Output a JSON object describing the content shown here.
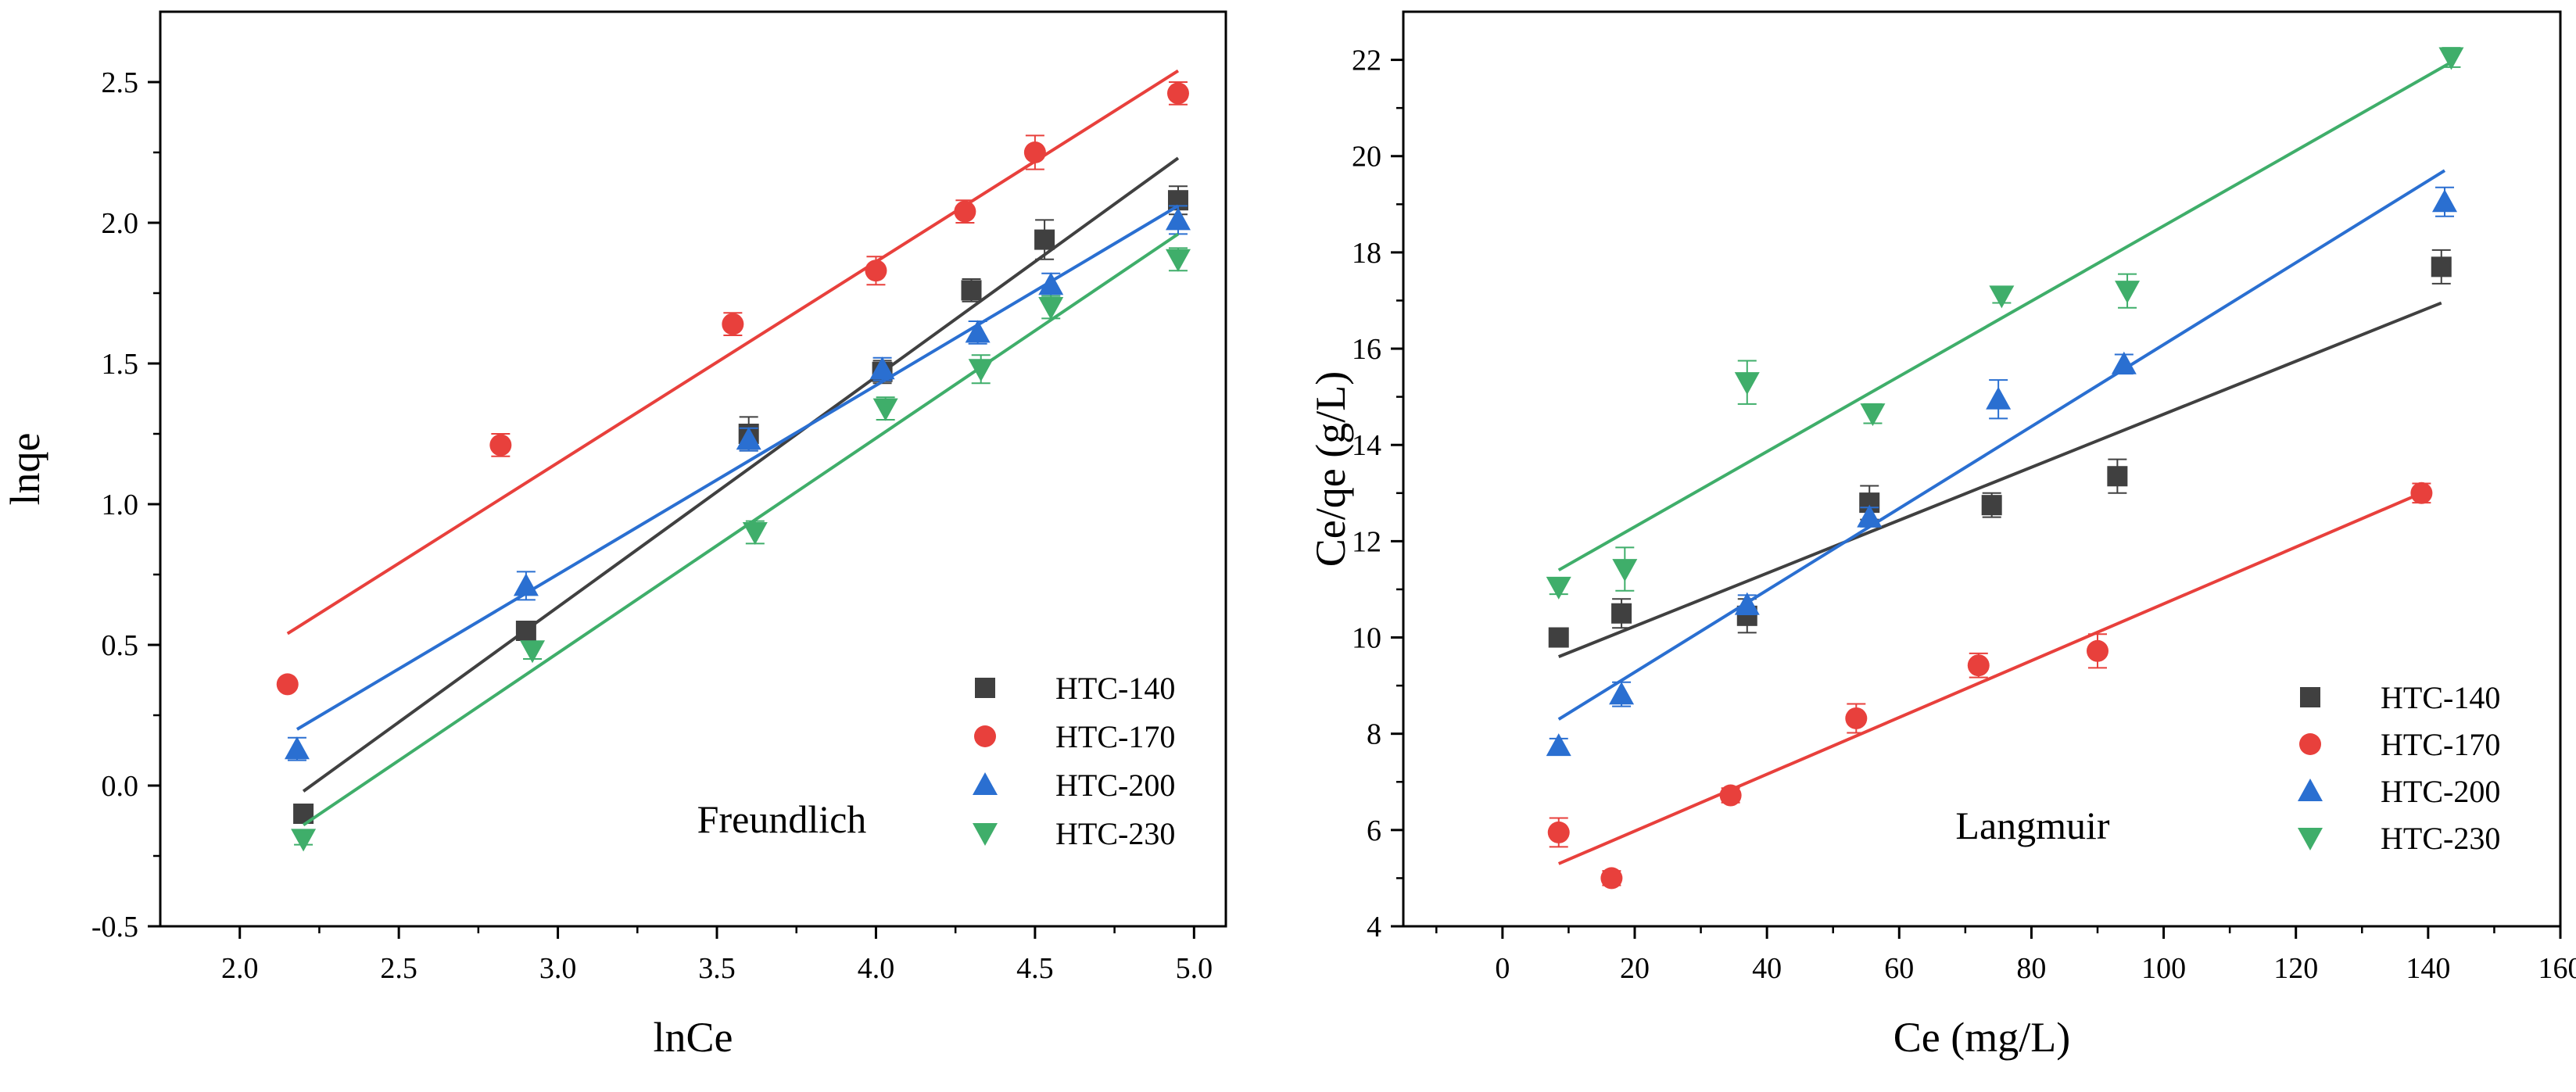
{
  "chart_data": [
    {
      "type": "scatter",
      "title": "Freundlich",
      "xlabel": "lnCe",
      "ylabel": "lnqe",
      "xlim": [
        1.75,
        5.1
      ],
      "ylim": [
        -0.5,
        2.75
      ],
      "xticks": [
        2.0,
        2.5,
        3.0,
        3.5,
        4.0,
        4.5,
        5.0
      ],
      "xtick_labels": [
        "2.0",
        "2.5",
        "3.0",
        "3.5",
        "4.0",
        "4.5",
        "5.0"
      ],
      "yticks": [
        -0.5,
        0.0,
        0.5,
        1.0,
        1.5,
        2.0,
        2.5
      ],
      "ytick_labels": [
        "-0.5",
        "0.0",
        "0.5",
        "1.0",
        "1.5",
        "2.0",
        "2.5"
      ],
      "legend_position": "bottom-right",
      "series": [
        {
          "name": "HTC-140",
          "color": "#404040",
          "marker": "square",
          "x": [
            2.2,
            2.9,
            3.6,
            4.02,
            4.3,
            4.53,
            4.95
          ],
          "y": [
            -0.1,
            0.55,
            1.25,
            1.47,
            1.76,
            1.94,
            2.08
          ],
          "err": [
            0.02,
            0.03,
            0.06,
            0.04,
            0.04,
            0.07,
            0.05
          ],
          "fit": {
            "x": [
              2.2,
              4.95
            ],
            "y": [
              -0.02,
              2.23
            ]
          }
        },
        {
          "name": "HTC-170",
          "color": "#e8403c",
          "marker": "circle",
          "x": [
            2.15,
            2.82,
            3.55,
            4.0,
            4.28,
            4.5,
            4.95
          ],
          "y": [
            0.36,
            1.21,
            1.64,
            1.83,
            2.04,
            2.25,
            2.46
          ],
          "err": [
            0.01,
            0.04,
            0.04,
            0.05,
            0.04,
            0.06,
            0.04
          ],
          "fit": {
            "x": [
              2.15,
              4.95
            ],
            "y": [
              0.54,
              2.54
            ]
          }
        },
        {
          "name": "HTC-200",
          "color": "#2a6fd1",
          "marker": "triangle-up",
          "x": [
            2.18,
            2.9,
            3.6,
            4.02,
            4.32,
            4.55,
            4.95
          ],
          "y": [
            0.13,
            0.71,
            1.23,
            1.48,
            1.61,
            1.78,
            2.01
          ],
          "err": [
            0.04,
            0.05,
            0.04,
            0.04,
            0.04,
            0.04,
            0.05
          ],
          "fit": {
            "x": [
              2.18,
              4.95
            ],
            "y": [
              0.2,
              2.06
            ]
          }
        },
        {
          "name": "HTC-230",
          "color": "#3fae6a",
          "marker": "triangle-down",
          "x": [
            2.2,
            2.92,
            3.62,
            4.03,
            4.33,
            4.55,
            4.95
          ],
          "y": [
            -0.19,
            0.48,
            0.9,
            1.34,
            1.48,
            1.7,
            1.87
          ],
          "err": [
            0.02,
            0.03,
            0.04,
            0.04,
            0.05,
            0.04,
            0.04
          ],
          "fit": {
            "x": [
              2.2,
              4.95
            ],
            "y": [
              -0.14,
              1.96
            ]
          }
        }
      ]
    },
    {
      "type": "scatter",
      "title": "Langmuir",
      "xlabel": "Ce (mg/L)",
      "ylabel": "Ce/qe (g/L)",
      "xlim": [
        -15,
        160
      ],
      "ylim": [
        4,
        23
      ],
      "xticks": [
        0,
        20,
        40,
        60,
        80,
        100,
        120,
        140,
        160
      ],
      "xtick_labels": [
        "0",
        "20",
        "40",
        "60",
        "80",
        "100",
        "120",
        "140",
        "160"
      ],
      "yticks": [
        4,
        6,
        8,
        10,
        12,
        14,
        16,
        18,
        20,
        22
      ],
      "ytick_labels": [
        "4",
        "6",
        "8",
        "10",
        "12",
        "14",
        "16",
        "18",
        "20",
        "22"
      ],
      "legend_position": "bottom-right",
      "series": [
        {
          "name": "HTC-140",
          "color": "#404040",
          "marker": "square",
          "x": [
            8.5,
            18,
            37,
            55.5,
            74,
            93,
            142
          ],
          "y": [
            10.0,
            10.5,
            10.45,
            12.8,
            12.75,
            13.35,
            17.7
          ],
          "err": [
            0.15,
            0.3,
            0.35,
            0.35,
            0.25,
            0.35,
            0.35
          ],
          "fit": {
            "x": [
              8.5,
              142
            ],
            "y": [
              9.6,
              16.95
            ]
          }
        },
        {
          "name": "HTC-170",
          "color": "#e8403c",
          "marker": "circle",
          "x": [
            8.5,
            16.5,
            34.5,
            53.5,
            72,
            90,
            139
          ],
          "y": [
            5.95,
            5.0,
            6.72,
            8.32,
            9.42,
            9.72,
            13.0
          ],
          "err": [
            0.3,
            0.15,
            0.15,
            0.3,
            0.25,
            0.35,
            0.2
          ],
          "fit": {
            "x": [
              8.5,
              139
            ],
            "y": [
              5.3,
              13.0
            ]
          }
        },
        {
          "name": "HTC-200",
          "color": "#2a6fd1",
          "marker": "triangle-up",
          "x": [
            8.5,
            18,
            37,
            55.5,
            75,
            94,
            142.5
          ],
          "y": [
            7.75,
            8.82,
            10.68,
            12.5,
            14.95,
            15.68,
            19.05
          ],
          "err": [
            0.15,
            0.25,
            0.2,
            0.2,
            0.4,
            0.2,
            0.3
          ],
          "fit": {
            "x": [
              8.5,
              142.5
            ],
            "y": [
              8.3,
              19.7
            ]
          }
        },
        {
          "name": "HTC-230",
          "color": "#3fae6a",
          "marker": "triangle-down",
          "x": [
            8.5,
            18.5,
            37,
            56,
            75.5,
            94.5,
            143.5
          ],
          "y": [
            11.05,
            11.42,
            15.3,
            14.65,
            17.1,
            17.2,
            22.05
          ],
          "err": [
            0.15,
            0.45,
            0.45,
            0.2,
            0.15,
            0.35,
            0.2
          ],
          "fit": {
            "x": [
              8.5,
              143.5
            ],
            "y": [
              11.4,
              21.95
            ]
          }
        }
      ]
    }
  ]
}
